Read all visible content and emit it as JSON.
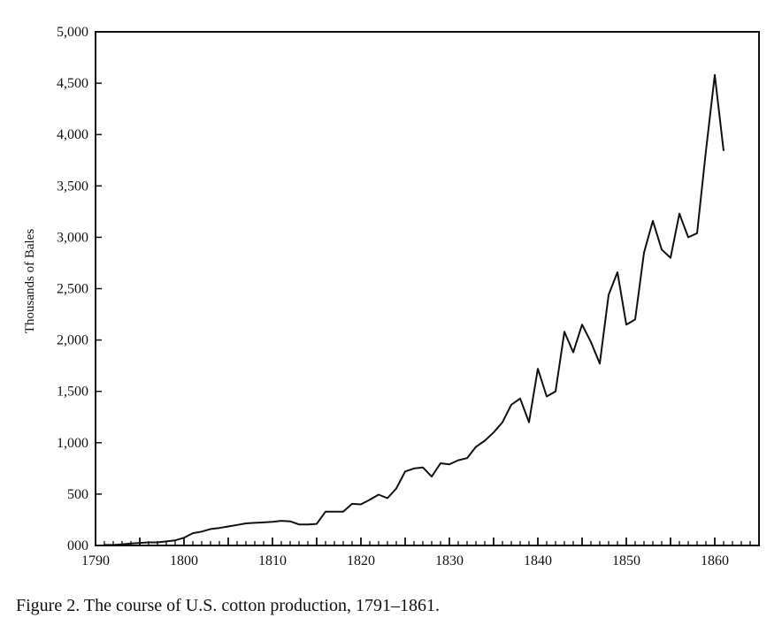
{
  "caption": "Figure 2. The course of U.S. cotton production, 1791–1861.",
  "chart_data": {
    "type": "line",
    "title": "",
    "xlabel": "",
    "ylabel": "Thousands of Bales",
    "xlim": [
      1790,
      1865
    ],
    "ylim": [
      0,
      5000
    ],
    "x_ticks": [
      1790,
      1800,
      1810,
      1820,
      1830,
      1840,
      1850,
      1860
    ],
    "x_tick_labels": [
      "1790",
      "1800",
      "1810",
      "1820",
      "1830",
      "1840",
      "1850",
      "1860"
    ],
    "y_ticks": [
      0,
      500,
      1000,
      1500,
      2000,
      2500,
      3000,
      3500,
      4000,
      4500,
      5000
    ],
    "y_tick_labels": [
      "000",
      "500",
      "1,000",
      "1,500",
      "2,000",
      "2,500",
      "3,000",
      "3,500",
      "4,000",
      "4,500",
      "5,000"
    ],
    "grid": false,
    "line_color": "#111111",
    "series": [
      {
        "x": [
          1791,
          1792,
          1793,
          1794,
          1795,
          1796,
          1797,
          1798,
          1799,
          1800,
          1801,
          1802,
          1803,
          1804,
          1805,
          1806,
          1807,
          1808,
          1809,
          1810,
          1811,
          1812,
          1813,
          1814,
          1815,
          1816,
          1817,
          1818,
          1819,
          1820,
          1821,
          1822,
          1823,
          1824,
          1825,
          1826,
          1827,
          1828,
          1829,
          1830,
          1831,
          1832,
          1833,
          1834,
          1835,
          1836,
          1837,
          1838,
          1839,
          1840,
          1841,
          1842,
          1843,
          1844,
          1845,
          1846,
          1847,
          1848,
          1849,
          1850,
          1851,
          1852,
          1853,
          1854,
          1855,
          1856,
          1857,
          1858,
          1859,
          1860,
          1861
        ],
        "y": [
          5,
          5,
          10,
          20,
          25,
          30,
          30,
          40,
          50,
          75,
          120,
          135,
          160,
          170,
          185,
          200,
          215,
          220,
          225,
          230,
          240,
          235,
          205,
          205,
          210,
          330,
          330,
          330,
          405,
          400,
          445,
          495,
          460,
          555,
          720,
          750,
          760,
          670,
          800,
          790,
          830,
          850,
          960,
          1020,
          1100,
          1200,
          1370,
          1430,
          1200,
          1720,
          1450,
          1500,
          2080,
          1880,
          2150,
          1980,
          1770,
          2440,
          2660,
          2150,
          2200,
          2850,
          3160,
          2880,
          2800,
          3230,
          3000,
          3040,
          3840,
          4580,
          3840
        ]
      }
    ]
  }
}
